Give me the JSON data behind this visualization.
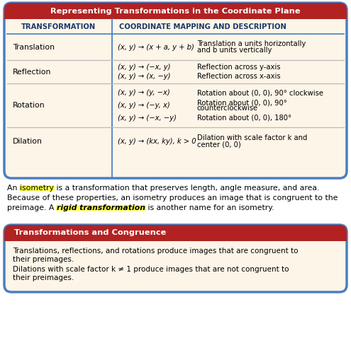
{
  "title1": "Representing Transformations in the Coordinate Plane",
  "title1_bg": "#b22222",
  "title1_color": "#ffffff",
  "table_bg": "#fdf5e8",
  "table_border": "#4a7fc1",
  "header_color": "#1a3a6b",
  "col1_header": "TRANSFORMATION",
  "col2_header": "COORDINATE MAPPING AND DESCRIPTION",
  "rows": [
    {
      "transform": "Translation",
      "mappings": [
        "(x, y) → (x + a, y + b)"
      ],
      "descriptions": [
        "Translation a units horizontally\nand b units vertically"
      ]
    },
    {
      "transform": "Reflection",
      "mappings": [
        "(x, y) → (−x, y)",
        "(x, y) → (x, −y)"
      ],
      "descriptions": [
        "Reflection across y-axis",
        "Reflection across x-axis"
      ]
    },
    {
      "transform": "Rotation",
      "mappings": [
        "(x, y) → (y, −x)",
        "(x, y) → (−y, x)",
        "(x, y) → (−x, −y)"
      ],
      "descriptions": [
        "Rotation about (0, 0), 90° clockwise",
        "Rotation about (0, 0), 90°\ncounterclockwise",
        "Rotation about (0, 0), 180°"
      ]
    },
    {
      "transform": "Dilation",
      "mappings": [
        "(x, y) → (kx, ky), k > 0"
      ],
      "descriptions": [
        "Dilation with scale factor k and\ncenter (0, 0)"
      ]
    }
  ],
  "title2": "Transformations and Congruence",
  "title2_bg": "#b22222",
  "title2_color": "#ffffff",
  "box2_bg": "#fdf5e8",
  "box2_border": "#4a7fc1",
  "box2_line1": "Translations, reflections, and rotations produce images that are congruent to\ntheir preimages.",
  "box2_line2": "Dilations with scale factor k ≠ 1 produce images that are not congruent to\ntheir preimages.",
  "fig_bg": "#ffffff",
  "highlight_color": "#FFFF44",
  "mid_line1": "An ",
  "mid_hl1": "isometry",
  "mid_line1b": " is a transformation that preserves length, angle measure, and area.",
  "mid_line2": "Because of these properties, an isometry produces an image that is congruent to the",
  "mid_line3a": "preimage. A ",
  "mid_hl2": "rigid transformation",
  "mid_line3b": " is another name for an isometry."
}
